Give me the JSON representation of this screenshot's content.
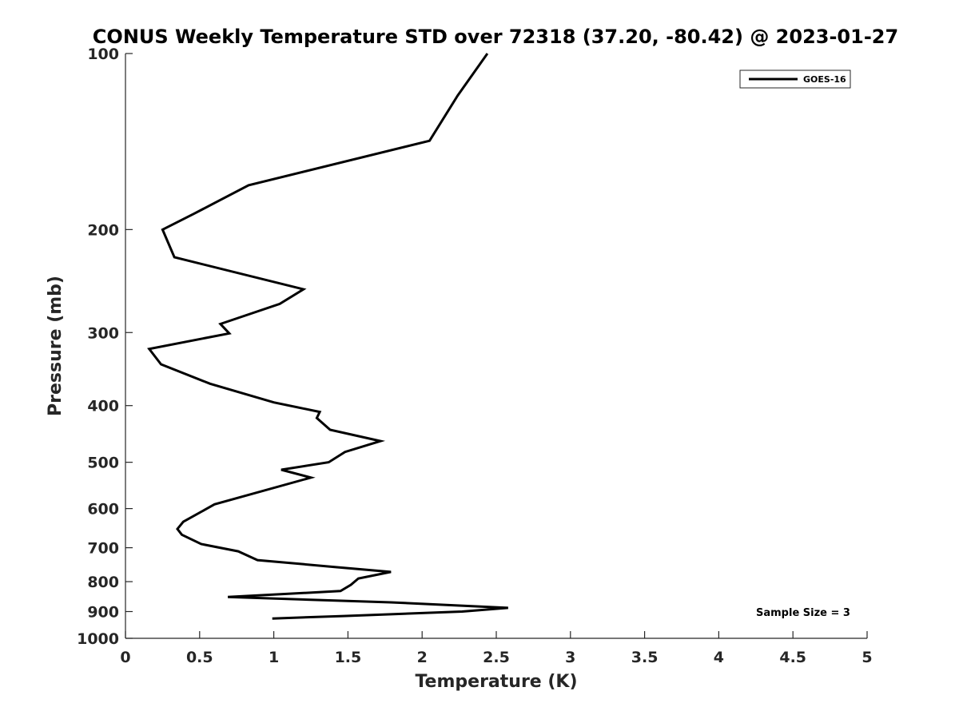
{
  "chart_data": {
    "type": "line",
    "title": "CONUS Weekly Temperature STD over 72318 (37.20, -80.42) @ 2023-01-27",
    "xlabel": "Temperature (K)",
    "ylabel": "Pressure (mb)",
    "xlim": [
      0,
      5
    ],
    "ylim": [
      100,
      1000
    ],
    "yscale": "log",
    "yreversed": true,
    "grid": false,
    "legend_placement": "top-right",
    "x_ticks": [
      "0",
      "0.5",
      "1",
      "1.5",
      "2",
      "2.5",
      "3",
      "3.5",
      "4",
      "4.5",
      "5"
    ],
    "y_ticks": [
      "100",
      "200",
      "300",
      "400",
      "500",
      "600",
      "700",
      "800",
      "900",
      "1000"
    ],
    "series": [
      {
        "name": "GOES-16",
        "color": "#000000",
        "points": [
          [
            2.44,
            100
          ],
          [
            2.24,
            118
          ],
          [
            2.05,
            141
          ],
          [
            0.83,
            168
          ],
          [
            0.46,
            188
          ],
          [
            0.25,
            200
          ],
          [
            0.33,
            223
          ],
          [
            1.2,
            253
          ],
          [
            1.04,
            268
          ],
          [
            0.64,
            290
          ],
          [
            0.7,
            301
          ],
          [
            0.16,
            320
          ],
          [
            0.24,
            340
          ],
          [
            0.57,
            367
          ],
          [
            1.0,
            395
          ],
          [
            1.31,
            410
          ],
          [
            1.29,
            420
          ],
          [
            1.38,
            440
          ],
          [
            1.72,
            460
          ],
          [
            1.48,
            480
          ],
          [
            1.37,
            500
          ],
          [
            1.05,
            515
          ],
          [
            1.25,
            531
          ],
          [
            0.6,
            590
          ],
          [
            0.39,
            632
          ],
          [
            0.35,
            650
          ],
          [
            0.38,
            665
          ],
          [
            0.51,
            690
          ],
          [
            0.76,
            710
          ],
          [
            0.89,
            735
          ],
          [
            1.41,
            755
          ],
          [
            1.79,
            770
          ],
          [
            1.57,
            790
          ],
          [
            1.52,
            810
          ],
          [
            1.45,
            830
          ],
          [
            0.69,
            850
          ],
          [
            1.79,
            868
          ],
          [
            2.58,
            887
          ],
          [
            2.27,
            900
          ],
          [
            1.47,
            916
          ],
          [
            0.99,
            925
          ]
        ]
      }
    ],
    "annotations": [
      "Sample Size = 3"
    ]
  }
}
